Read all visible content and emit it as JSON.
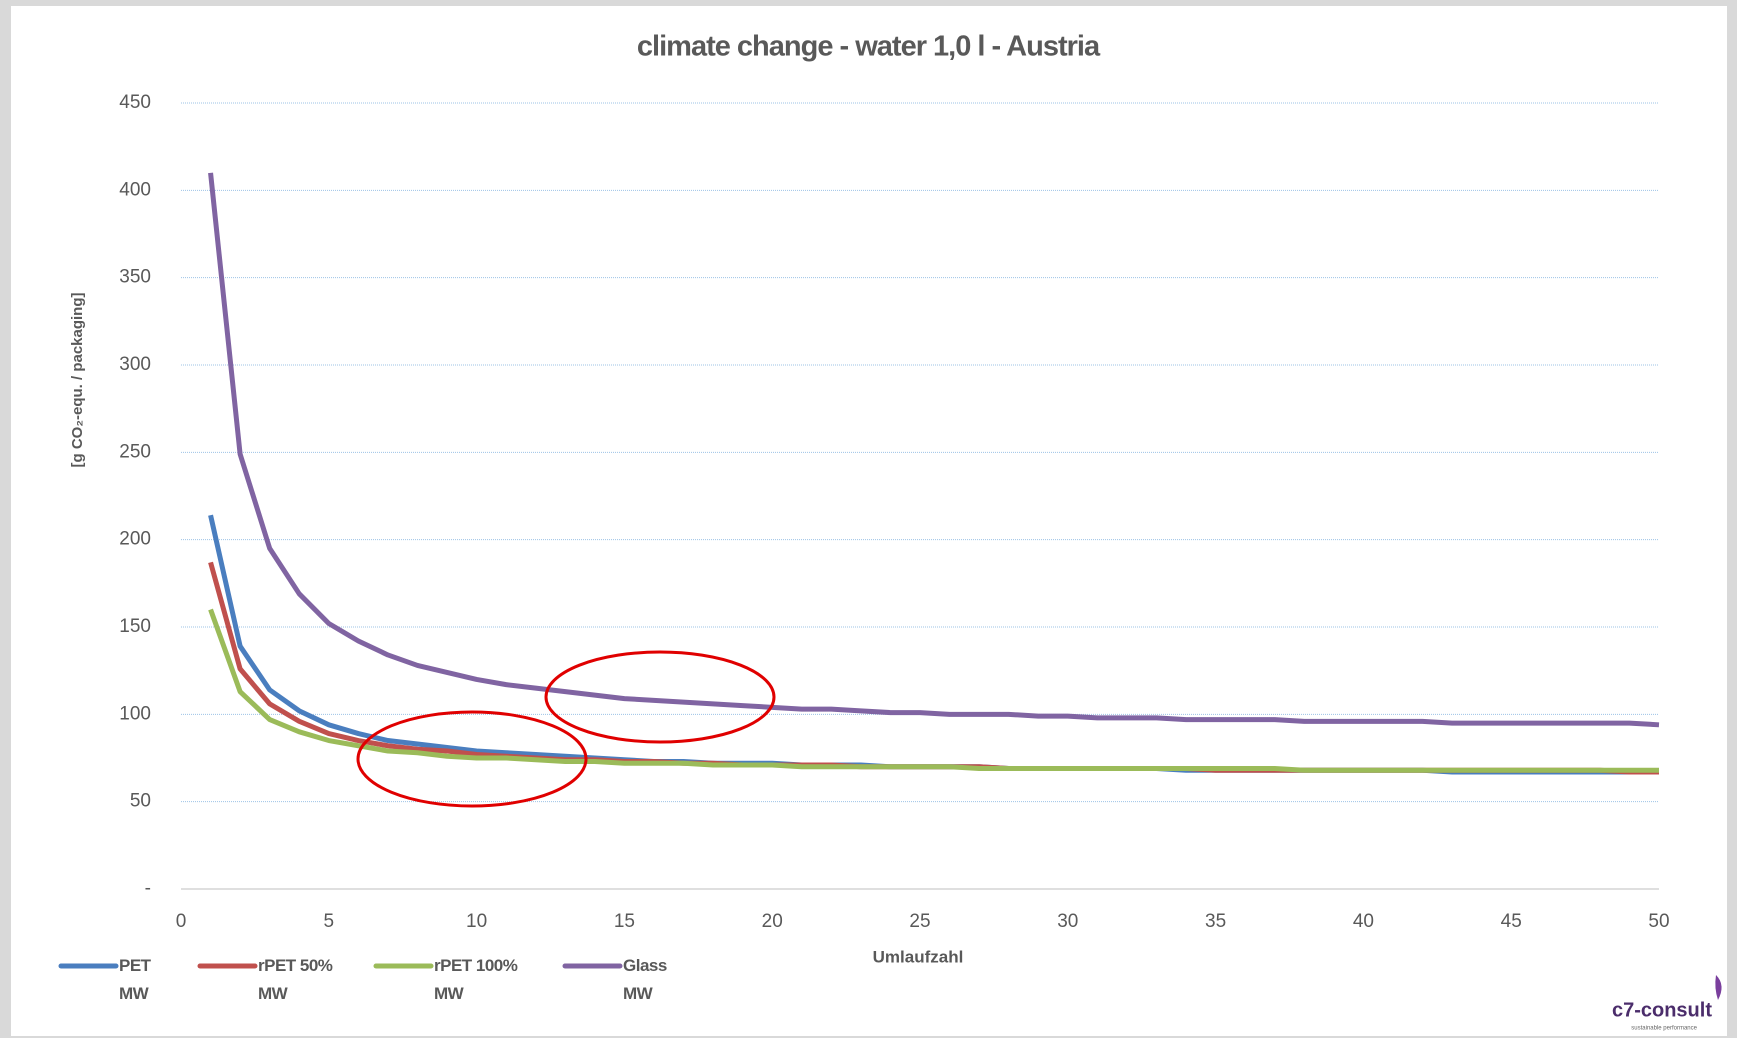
{
  "chart_data": {
    "type": "line",
    "title": "climate change - water 1,0 l - Austria",
    "x_label": "Umlaufzahl",
    "y_label": "[g CO₂-equ. / packaging]",
    "x": [
      1,
      2,
      3,
      4,
      5,
      6,
      7,
      8,
      9,
      10,
      11,
      12,
      13,
      14,
      15,
      16,
      17,
      18,
      19,
      20,
      21,
      22,
      23,
      24,
      25,
      26,
      27,
      28,
      29,
      30,
      31,
      32,
      33,
      34,
      35,
      36,
      37,
      38,
      39,
      40,
      41,
      42,
      43,
      44,
      45,
      46,
      47,
      48,
      49,
      50
    ],
    "series": [
      {
        "name": "PET\nMW",
        "color": "#4a7ebf",
        "values": [
          214,
          139,
          114,
          102,
          94,
          89,
          85,
          83,
          81,
          79,
          78,
          77,
          76,
          75,
          74,
          73,
          73,
          72,
          72,
          72,
          71,
          71,
          71,
          70,
          70,
          70,
          70,
          69,
          69,
          69,
          69,
          69,
          69,
          68,
          68,
          68,
          68,
          68,
          68,
          68,
          68,
          68,
          67,
          67,
          67,
          67,
          67,
          67,
          67,
          67
        ]
      },
      {
        "name": "rPET 50%\nMW",
        "color": "#c0504d",
        "values": [
          187,
          126,
          106,
          96,
          89,
          85,
          82,
          80,
          79,
          77,
          76,
          75,
          74,
          74,
          73,
          73,
          72,
          72,
          71,
          71,
          71,
          71,
          70,
          70,
          70,
          70,
          70,
          69,
          69,
          69,
          69,
          69,
          69,
          69,
          68,
          68,
          68,
          68,
          68,
          68,
          68,
          68,
          68,
          68,
          68,
          68,
          68,
          68,
          67,
          67
        ]
      },
      {
        "name": "rPET 100%\nMW",
        "color": "#9bbb59",
        "values": [
          160,
          113,
          97,
          90,
          85,
          82,
          79,
          78,
          76,
          75,
          75,
          74,
          73,
          73,
          72,
          72,
          72,
          71,
          71,
          71,
          70,
          70,
          70,
          70,
          70,
          70,
          69,
          69,
          69,
          69,
          69,
          69,
          69,
          69,
          69,
          69,
          69,
          68,
          68,
          68,
          68,
          68,
          68,
          68,
          68,
          68,
          68,
          68,
          68,
          68
        ]
      },
      {
        "name": "Glass\nMW",
        "color": "#8064a2",
        "values": [
          410,
          249,
          195,
          169,
          152,
          142,
          134,
          128,
          124,
          120,
          117,
          115,
          113,
          111,
          109,
          108,
          107,
          106,
          105,
          104,
          103,
          103,
          102,
          101,
          101,
          100,
          100,
          100,
          99,
          99,
          98,
          98,
          98,
          97,
          97,
          97,
          97,
          96,
          96,
          96,
          96,
          96,
          95,
          95,
          95,
          95,
          95,
          95,
          95,
          94
        ]
      }
    ],
    "xlim": [
      0,
      50
    ],
    "xticks": [
      0,
      5,
      10,
      15,
      20,
      25,
      30,
      35,
      40,
      45,
      50
    ],
    "ylim": [
      0,
      450
    ],
    "yticks": [
      {
        "value": 0,
        "label": "-"
      },
      50,
      100,
      150,
      200,
      250,
      300,
      350,
      400,
      450
    ],
    "grid": true,
    "logo": "c7-consult",
    "logo_tagline": "sustainable performance"
  }
}
